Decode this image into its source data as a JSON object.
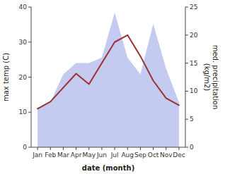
{
  "chart_data": {
    "type": "line",
    "xlabel": "date (month)",
    "ylabel": "max temp (C)",
    "y2label": "med. precipitation\n(kg/m2)",
    "categories": [
      "Jan",
      "Feb",
      "Mar",
      "Apr",
      "May",
      "Jun",
      "Jul",
      "Aug",
      "Sep",
      "Oct",
      "Nov",
      "Dec"
    ],
    "series": [
      {
        "type": "area",
        "axis": "y2",
        "color": "#c5caf0",
        "values": [
          7,
          8,
          13,
          15,
          15,
          16,
          24,
          16,
          13,
          22,
          14,
          8
        ]
      },
      {
        "type": "line",
        "color": "#993333",
        "values": [
          11,
          13,
          17,
          21,
          18,
          24,
          30,
          32,
          26,
          19,
          14,
          12
        ]
      }
    ],
    "ylim": [
      0,
      40
    ],
    "yticks": [
      0,
      10,
      20,
      30,
      40
    ],
    "y2lim": [
      0,
      25
    ],
    "y2ticks": [
      0,
      5,
      10,
      15,
      20,
      25
    ],
    "grid": false
  }
}
